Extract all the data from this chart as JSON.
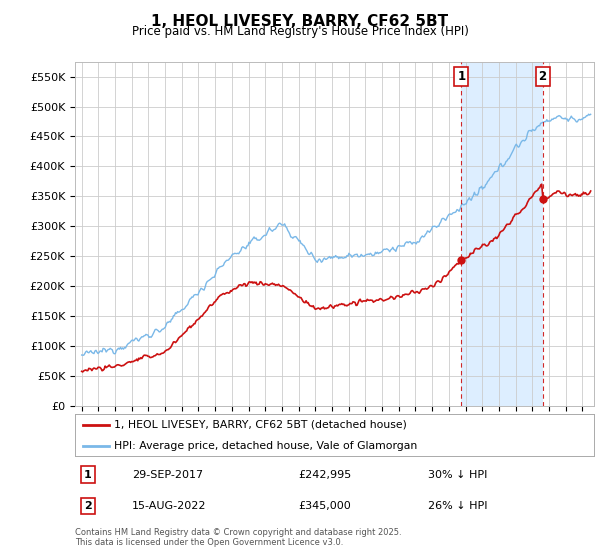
{
  "title": "1, HEOL LIVESEY, BARRY, CF62 5BT",
  "subtitle": "Price paid vs. HM Land Registry's House Price Index (HPI)",
  "yticks": [
    0,
    50000,
    100000,
    150000,
    200000,
    250000,
    300000,
    350000,
    400000,
    450000,
    500000,
    550000
  ],
  "ytick_labels": [
    "£0",
    "£50K",
    "£100K",
    "£150K",
    "£200K",
    "£250K",
    "£300K",
    "£350K",
    "£400K",
    "£450K",
    "£500K",
    "£550K"
  ],
  "ylim": [
    0,
    575000
  ],
  "xlim_min": 1994.6,
  "xlim_max": 2025.7,
  "hpi_color": "#7ab8e8",
  "price_color": "#cc1111",
  "shade_color": "#ddeeff",
  "transaction1": {
    "date": "29-SEP-2017",
    "price": 242995,
    "pct": "30% ↓ HPI",
    "year": 2017.75
  },
  "transaction2": {
    "date": "15-AUG-2022",
    "price": 345000,
    "pct": "26% ↓ HPI",
    "year": 2022.62
  },
  "legend1": "1, HEOL LIVESEY, BARRY, CF62 5BT (detached house)",
  "legend2": "HPI: Average price, detached house, Vale of Glamorgan",
  "footnote": "Contains HM Land Registry data © Crown copyright and database right 2025.\nThis data is licensed under the Open Government Licence v3.0.",
  "bg_color": "#ffffff",
  "grid_color": "#cccccc",
  "xtick_years": [
    1995,
    1996,
    1997,
    1998,
    1999,
    2000,
    2001,
    2002,
    2003,
    2004,
    2005,
    2006,
    2007,
    2008,
    2009,
    2010,
    2011,
    2012,
    2013,
    2014,
    2015,
    2016,
    2017,
    2018,
    2019,
    2020,
    2021,
    2022,
    2023,
    2024,
    2025
  ]
}
